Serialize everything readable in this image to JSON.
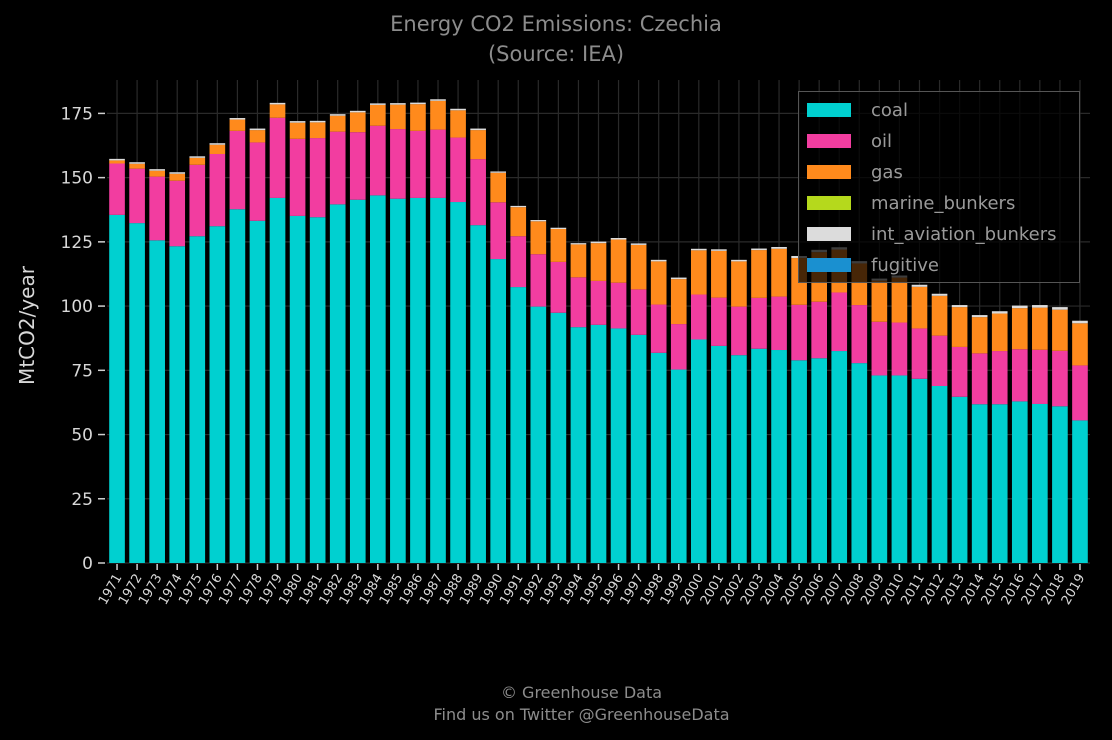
{
  "header": {
    "title": "Energy CO2 Emissions: Czechia",
    "subtitle": "(Source: IEA)"
  },
  "footer": {
    "line1": "© Greenhouse Data",
    "line2": "Find us on Twitter @GreenhouseData"
  },
  "chart_data": {
    "type": "bar",
    "stacked": true,
    "ylabel": "MtCO2/year",
    "xlabel": "",
    "ylim": [
      0,
      188
    ],
    "yticks": [
      0,
      25,
      50,
      75,
      100,
      125,
      150,
      175
    ],
    "grid": true,
    "legend_position": "top-right",
    "categories": [
      "1971",
      "1972",
      "1973",
      "1974",
      "1975",
      "1976",
      "1977",
      "1978",
      "1979",
      "1980",
      "1981",
      "1982",
      "1983",
      "1984",
      "1985",
      "1986",
      "1987",
      "1988",
      "1989",
      "1990",
      "1991",
      "1992",
      "1993",
      "1994",
      "1995",
      "1996",
      "1997",
      "1998",
      "1999",
      "2000",
      "2001",
      "2002",
      "2003",
      "2004",
      "2005",
      "2006",
      "2007",
      "2008",
      "2009",
      "2010",
      "2011",
      "2012",
      "2013",
      "2014",
      "2015",
      "2016",
      "2017",
      "2018",
      "2019"
    ],
    "series": [
      {
        "name": "coal",
        "color": "#00d0d0",
        "values": [
          135.5,
          132.3,
          125.6,
          123.3,
          127.2,
          131.1,
          137.7,
          133.2,
          142.1,
          135.1,
          134.6,
          139.6,
          141.4,
          143.1,
          141.8,
          142.1,
          142.1,
          140.5,
          131.5,
          118.3,
          107.4,
          99.8,
          97.4,
          91.8,
          92.7,
          91.3,
          88.8,
          81.8,
          75.3,
          87.0,
          84.5,
          80.9,
          83.4,
          82.9,
          78.9,
          79.7,
          82.5,
          77.8,
          73.0,
          73.0,
          71.7,
          68.9,
          64.7,
          61.8,
          61.8,
          62.9,
          61.9,
          61.0,
          55.5
        ]
      },
      {
        "name": "oil",
        "color": "#f23da0",
        "values": [
          20.0,
          21.2,
          24.8,
          25.5,
          27.8,
          28.1,
          30.5,
          30.5,
          31.2,
          30.0,
          30.8,
          28.3,
          26.3,
          27.1,
          27.1,
          26.1,
          26.6,
          25.1,
          25.7,
          22.1,
          19.8,
          20.4,
          19.8,
          19.4,
          17.1,
          17.8,
          17.7,
          18.8,
          17.7,
          17.5,
          18.8,
          18.9,
          19.8,
          20.8,
          21.6,
          22.0,
          22.8,
          22.6,
          20.9,
          20.6,
          19.6,
          19.6,
          19.4,
          19.8,
          20.7,
          20.3,
          21.1,
          21.6,
          21.4
        ]
      },
      {
        "name": "gas",
        "color": "#ff8a1c",
        "values": [
          1.2,
          1.9,
          2.3,
          2.7,
          2.7,
          3.6,
          4.4,
          4.8,
          5.2,
          6.3,
          6.1,
          6.2,
          7.7,
          8.1,
          9.5,
          10.4,
          11.2,
          10.6,
          11.3,
          11.5,
          11.3,
          12.8,
          12.8,
          12.8,
          14.7,
          16.8,
          17.3,
          16.8,
          17.5,
          17.2,
          18.2,
          17.6,
          18.6,
          18.6,
          18.2,
          19.3,
          16.7,
          16.2,
          16.0,
          17.5,
          16.2,
          15.5,
          15.5,
          14.1,
          14.6,
          16.0,
          16.4,
          16.0,
          16.4
        ]
      },
      {
        "name": "marine_bunkers",
        "color": "#b5d91c",
        "values": [
          0,
          0,
          0,
          0,
          0,
          0,
          0,
          0,
          0,
          0,
          0,
          0,
          0,
          0,
          0,
          0,
          0,
          0,
          0,
          0,
          0,
          0,
          0,
          0,
          0,
          0,
          0,
          0,
          0,
          0,
          0,
          0,
          0,
          0,
          0,
          0,
          0,
          0,
          0,
          0,
          0,
          0,
          0,
          0,
          0,
          0,
          0,
          0,
          0
        ]
      },
      {
        "name": "int_aviation_bunkers",
        "color": "#dcdcdc",
        "values": [
          0.6,
          0.6,
          0.6,
          0.6,
          0.6,
          0.6,
          0.6,
          0.6,
          0.6,
          0.6,
          0.6,
          0.6,
          0.6,
          0.6,
          0.6,
          0.6,
          0.6,
          0.6,
          0.6,
          0.5,
          0.5,
          0.5,
          0.5,
          0.5,
          0.6,
          0.6,
          0.6,
          0.6,
          0.6,
          0.6,
          0.6,
          0.6,
          0.6,
          0.7,
          0.8,
          0.9,
          0.9,
          0.9,
          0.8,
          0.8,
          0.8,
          0.8,
          0.8,
          0.8,
          0.9,
          1.0,
          1.0,
          1.0,
          1.0
        ]
      },
      {
        "name": "fugitive",
        "color": "#1a90d0",
        "values": [
          0,
          0,
          0,
          0,
          0,
          0,
          0,
          0,
          0,
          0,
          0,
          0,
          0,
          0,
          0,
          0,
          0,
          0,
          0,
          0,
          0,
          0,
          0,
          0,
          0,
          0,
          0,
          0,
          0,
          0,
          0,
          0,
          0,
          0,
          0,
          0,
          0,
          0,
          0,
          0,
          0,
          0,
          0,
          0,
          0,
          0,
          0,
          0,
          0
        ]
      }
    ]
  }
}
